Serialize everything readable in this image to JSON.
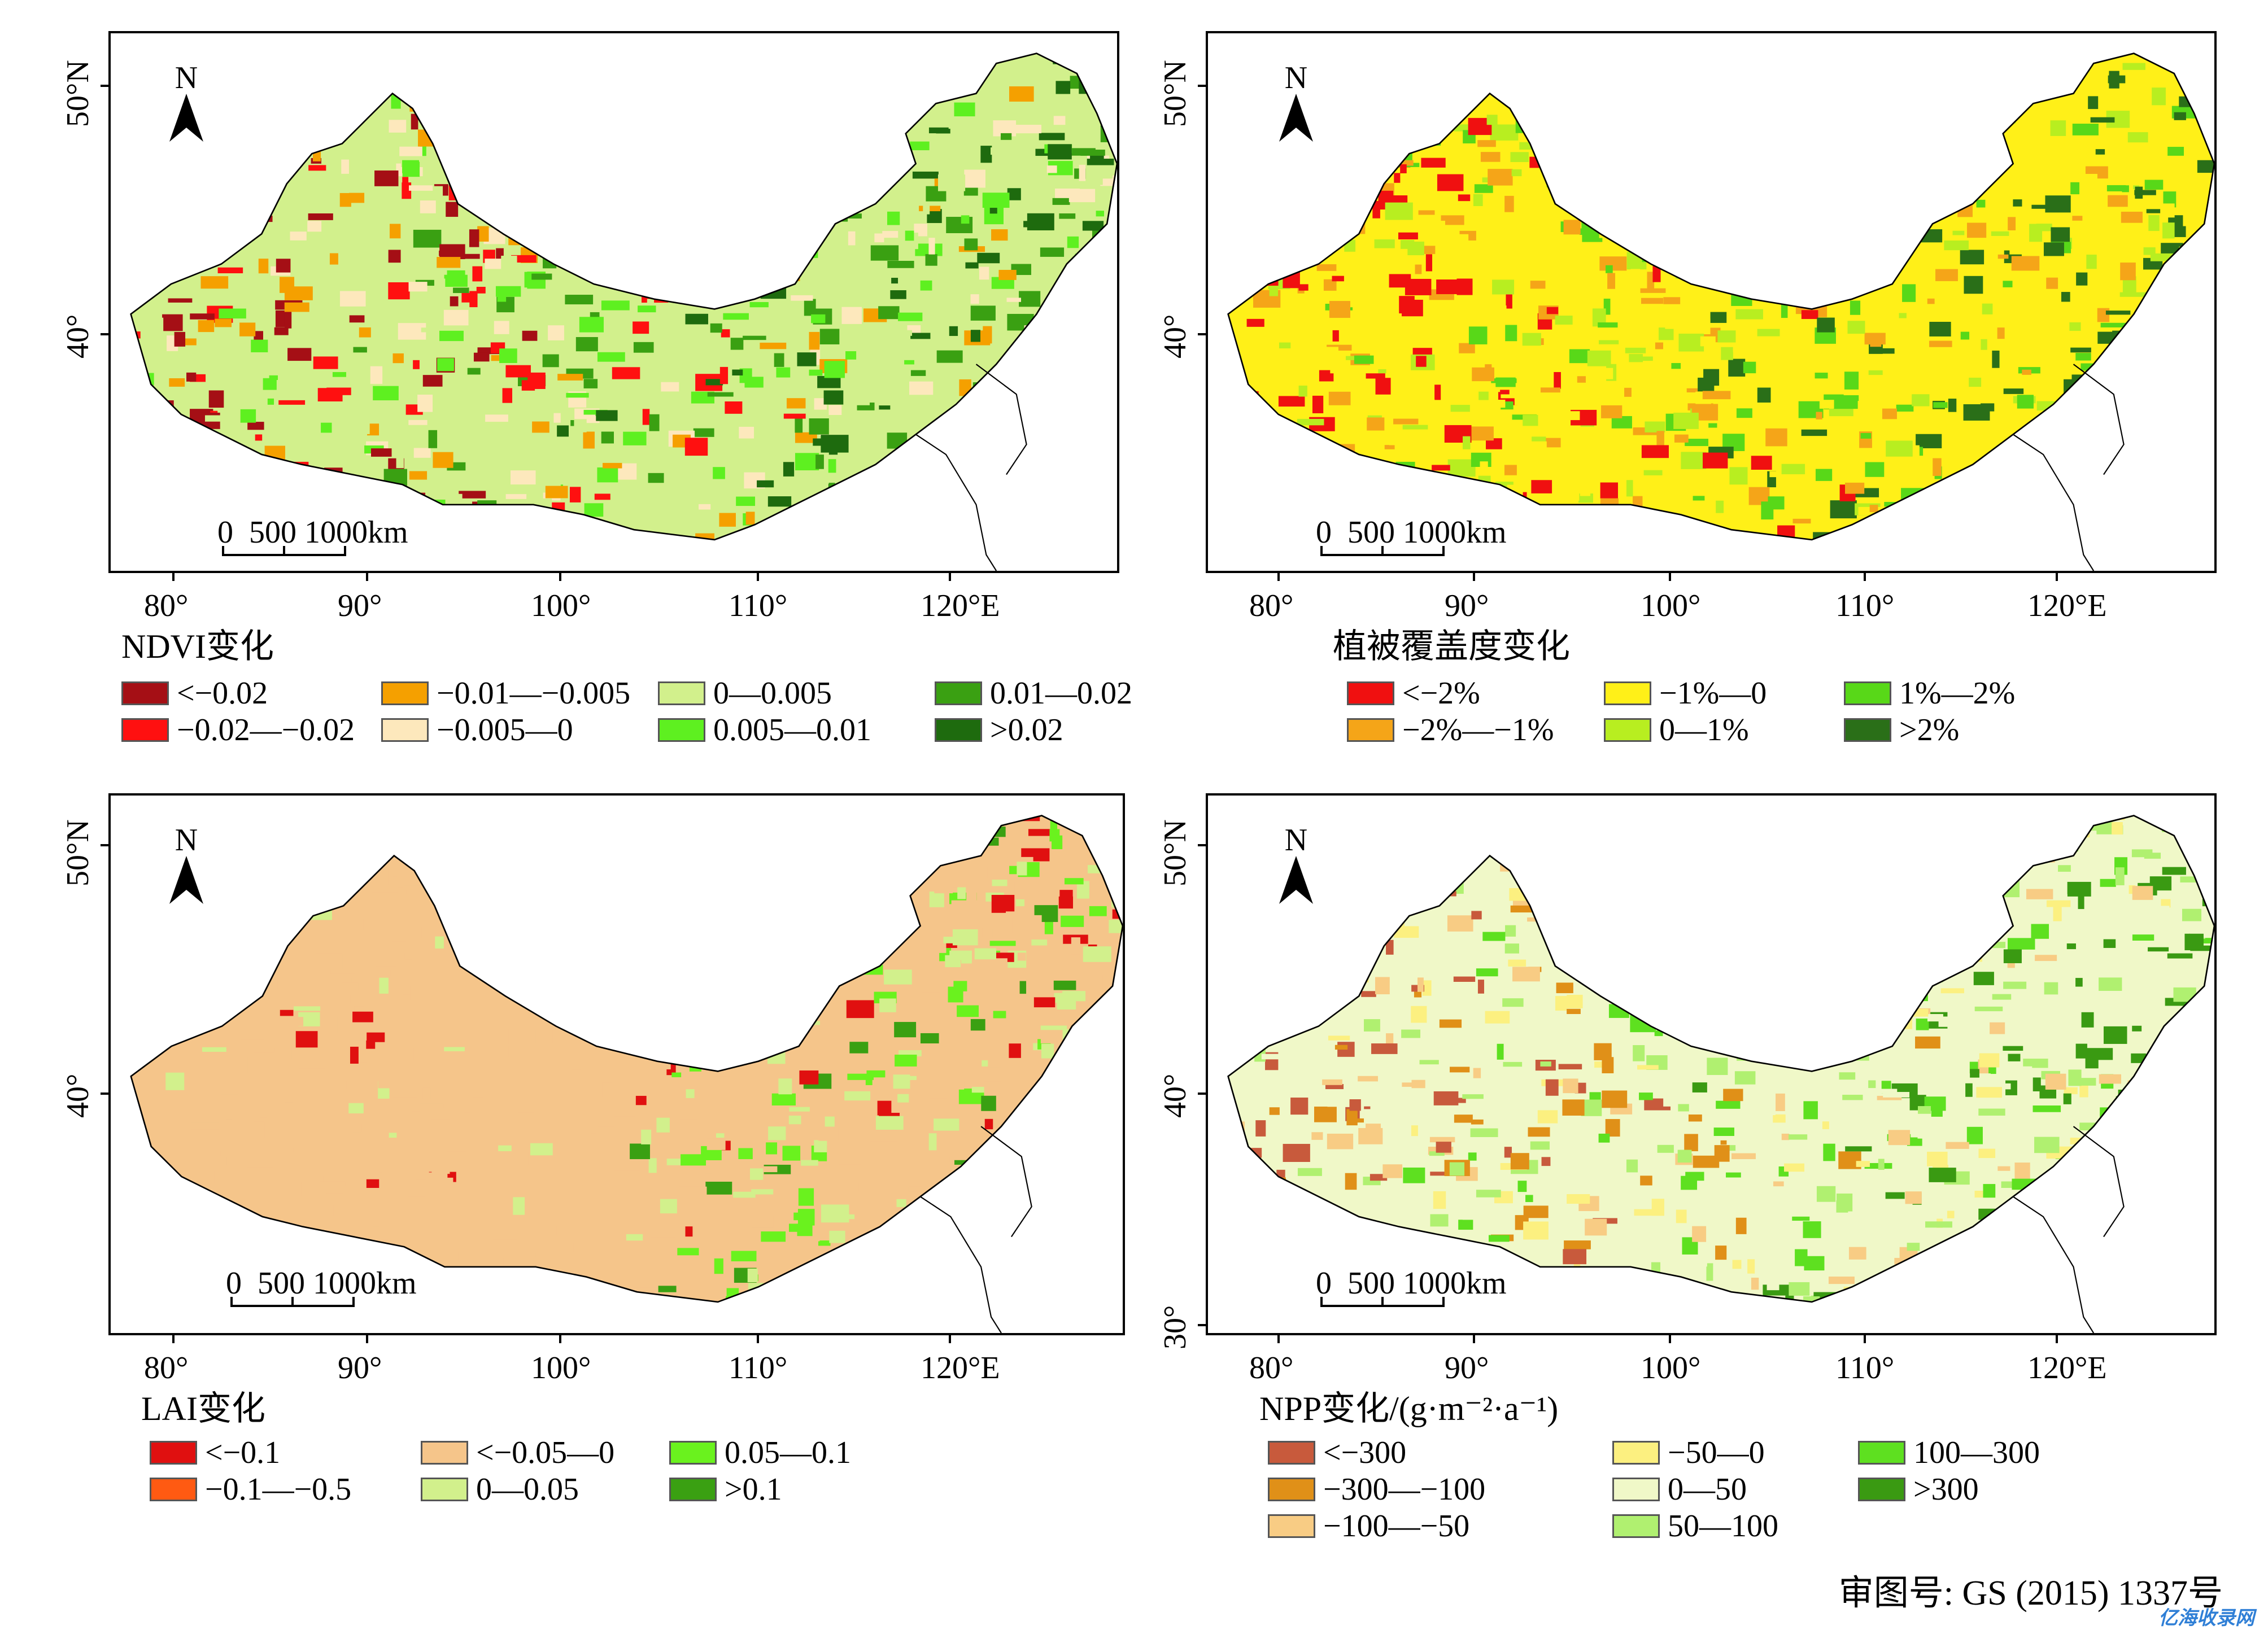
{
  "north_label": "N",
  "scale_text": "0  500 1000km",
  "x_ticks": [
    "80°",
    "90°",
    "100°",
    "110°",
    "120°E"
  ],
  "panels": [
    {
      "id": "ndvi",
      "y_ticks": [
        "50°N",
        "40°"
      ],
      "legend_title": "NDVI变化",
      "legend": [
        {
          "label": "<−0.02",
          "color": "#a50f15"
        },
        {
          "label": "−0.02—−0.02",
          "color": "#ff1010"
        },
        {
          "label": "−0.01—−0.005",
          "color": "#f5a000"
        },
        {
          "label": "−0.005—0",
          "color": "#fde8bc"
        },
        {
          "label": "0—0.005",
          "color": "#d2f08c"
        },
        {
          "label": "0.005—0.01",
          "color": "#5ef020"
        },
        {
          "label": "0.01—0.02",
          "color": "#3aa012"
        },
        {
          "label": ">0.02",
          "color": "#1e6b0e"
        }
      ]
    },
    {
      "id": "fvc",
      "y_ticks": [
        "50°N",
        "40°"
      ],
      "legend_title": "植被覆盖度变化",
      "legend": [
        {
          "label": "<−2%",
          "color": "#f01010"
        },
        {
          "label": "−2%—−1%",
          "color": "#f5a518"
        },
        {
          "label": "−1%—0",
          "color": "#fff018"
        },
        {
          "label": "0—1%",
          "color": "#b8ee20"
        },
        {
          "label": "1%—2%",
          "color": "#58d818"
        },
        {
          "label": ">2%",
          "color": "#2a6f18"
        }
      ]
    },
    {
      "id": "lai",
      "y_ticks": [
        "50°N",
        "40°"
      ],
      "legend_title": "LAI变化",
      "legend": [
        {
          "label": "<−0.1",
          "color": "#e01010"
        },
        {
          "label": "−0.1—−0.5",
          "color": "#ff5a12"
        },
        {
          "label": "<−0.05—0",
          "color": "#f5c58a"
        },
        {
          "label": "0—0.05",
          "color": "#d2f08c"
        },
        {
          "label": "0.05—0.1",
          "color": "#6af21e"
        },
        {
          "label": ">0.1",
          "color": "#3aa012"
        }
      ]
    },
    {
      "id": "npp",
      "y_ticks": [
        "50°N",
        "40°",
        "30°"
      ],
      "legend_title": "NPP变化/(g·m⁻²·a⁻¹)",
      "legend": [
        {
          "label": "<−300",
          "color": "#c85a3c"
        },
        {
          "label": "−300—−100",
          "color": "#e09018"
        },
        {
          "label": "−100—−50",
          "color": "#f8cc84"
        },
        {
          "label": "−50—0",
          "color": "#fcf080"
        },
        {
          "label": "0—50",
          "color": "#f0f8c8"
        },
        {
          "label": "50—100",
          "color": "#b0f070"
        },
        {
          "label": "100—300",
          "color": "#5ee020"
        },
        {
          "label": ">300",
          "color": "#3a9a12"
        }
      ]
    }
  ],
  "approval": "审图号: GS (2015) 1337号",
  "watermark": "亿海收录网"
}
